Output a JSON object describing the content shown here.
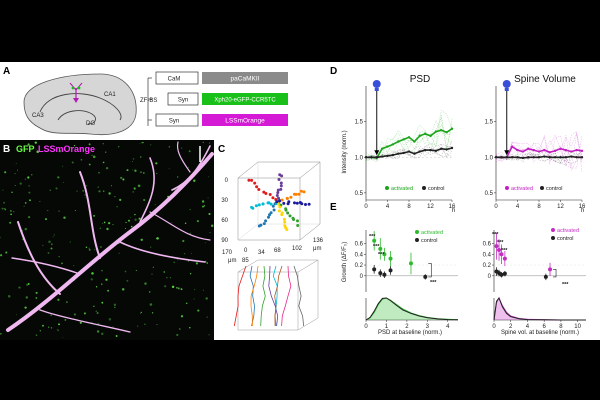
{
  "panels": {
    "A": {
      "label": "A",
      "regions": [
        "CA3",
        "CA1",
        "DG"
      ],
      "constructs": [
        {
          "promoter": "CaM",
          "payload": "paCaMKII",
          "color": "#8a8a8a"
        },
        {
          "promoter": "ZF-BS",
          "promoter2": "Syn",
          "payload": "Xph20-eGFP-CCR5TC",
          "color": "#19c019"
        },
        {
          "promoter": "Syn",
          "payload": "LSSmOrange",
          "color": "#d51ad5"
        }
      ]
    },
    "B": {
      "label": "B",
      "gfp": "GFP",
      "lss": "LSSmOrange",
      "gfp_color": "#66ff44",
      "lss_color": "#ff33ff"
    },
    "C": {
      "label": "C",
      "x_ticks": [
        "0",
        "34",
        "68",
        "102",
        "136"
      ],
      "y_ticks": [
        "0",
        "30",
        "60",
        "90"
      ],
      "z_ticks": [
        "170",
        "85"
      ],
      "unit": "μm"
    },
    "D": {
      "label": "D",
      "psd_title": "PSD",
      "spine_title": "Spine Volume",
      "ylabel": "Intensity (norm.)",
      "legend_activated": "activated",
      "legend_control": "control",
      "x_unit": "h"
    },
    "E": {
      "label": "E",
      "ylabel": "Growth (ΔF/F₀)",
      "left_xlabel": "PSD at baseline (norm.)",
      "right_xlabel": "Spine vol. at baseline (norm.)",
      "legend_activated": "activated",
      "legend_control": "control",
      "sig_stars": [
        "***",
        "***",
        "***",
        "***"
      ],
      "sig_pair": "***"
    }
  },
  "chart_data": [
    {
      "type": "line",
      "title": "PSD",
      "xlabel": "h",
      "ylabel": "Intensity (norm.)",
      "xlim": [
        0,
        16
      ],
      "ylim": [
        0.4,
        2.0
      ],
      "x_ticks": [
        0,
        4,
        8,
        12,
        16
      ],
      "y_ticks": [
        0.5,
        1.0,
        1.5
      ],
      "x": [
        0,
        1,
        2,
        3,
        4,
        5,
        6,
        7,
        8,
        9,
        10,
        11,
        12,
        13,
        14,
        15,
        16
      ],
      "stimulus_time": 2,
      "series": [
        {
          "name": "activated",
          "color": "#1aa51a",
          "values": [
            1.0,
            1.0,
            0.99,
            1.12,
            1.15,
            1.18,
            1.22,
            1.25,
            1.28,
            1.22,
            1.3,
            1.33,
            1.3,
            1.36,
            1.38,
            1.35,
            1.4
          ]
        },
        {
          "name": "control",
          "color": "#222222",
          "values": [
            1.0,
            1.0,
            1.0,
            1.01,
            1.02,
            1.03,
            1.05,
            1.06,
            1.08,
            1.05,
            1.08,
            1.1,
            1.1,
            1.09,
            1.12,
            1.11,
            1.13
          ]
        }
      ]
    },
    {
      "type": "line",
      "title": "Spine Volume",
      "xlabel": "h",
      "ylabel": "",
      "xlim": [
        0,
        16
      ],
      "ylim": [
        0.4,
        2.0
      ],
      "x_ticks": [
        0,
        4,
        8,
        12,
        16
      ],
      "y_ticks": [
        0.5,
        1.0,
        1.5
      ],
      "x": [
        0,
        1,
        2,
        3,
        4,
        5,
        6,
        7,
        8,
        9,
        10,
        11,
        12,
        13,
        14,
        15,
        16
      ],
      "stimulus_time": 2,
      "series": [
        {
          "name": "activated",
          "color": "#c21fc2",
          "values": [
            1.0,
            1.0,
            1.0,
            1.15,
            1.1,
            1.08,
            1.12,
            1.1,
            1.08,
            1.1,
            1.07,
            1.09,
            1.12,
            1.1,
            1.08,
            1.1,
            1.09
          ]
        },
        {
          "name": "control",
          "color": "#222222",
          "values": [
            1.0,
            1.0,
            1.0,
            1.0,
            1.0,
            0.99,
            1.0,
            1.0,
            1.0,
            1.01,
            1.0,
            1.0,
            1.0,
            1.0,
            1.01,
            1.0,
            1.0
          ]
        }
      ]
    },
    {
      "type": "scatter",
      "title": "",
      "xlabel": "PSD at baseline (norm.)",
      "ylabel": "Growth (ΔF/F₀)",
      "xlim": [
        0,
        4.5
      ],
      "ylim": [
        -0.3,
        0.85
      ],
      "x_ticks": [
        0,
        1,
        2,
        3,
        4
      ],
      "y_ticks": [
        0,
        0.2,
        0.4,
        0.6
      ],
      "series": [
        {
          "name": "activated",
          "color": "#2dbb2d",
          "x": [
            0.4,
            0.7,
            0.9,
            1.2,
            2.2
          ],
          "y": [
            0.65,
            0.5,
            0.4,
            0.32,
            0.23
          ],
          "err": [
            0.18,
            0.2,
            0.12,
            0.14,
            0.2
          ]
        },
        {
          "name": "control",
          "color": "#222222",
          "x": [
            0.4,
            0.7,
            0.9,
            1.2,
            2.9
          ],
          "y": [
            0.12,
            0.05,
            0.02,
            0.1,
            -0.02
          ],
          "err": [
            0.08,
            0.07,
            0.06,
            0.08,
            0.05
          ]
        }
      ],
      "distribution": {
        "x": [
          0,
          0.2,
          0.4,
          0.6,
          0.8,
          1.0,
          1.2,
          1.5,
          1.8,
          2.2,
          2.6,
          3.0,
          3.5,
          4.0,
          4.5
        ],
        "activated": [
          0,
          0.1,
          0.35,
          0.7,
          0.95,
          1.0,
          0.9,
          0.7,
          0.5,
          0.32,
          0.2,
          0.12,
          0.06,
          0.03,
          0.01
        ],
        "control": [
          0,
          0.12,
          0.4,
          0.75,
          0.98,
          1.0,
          0.88,
          0.66,
          0.46,
          0.3,
          0.18,
          0.1,
          0.05,
          0.02,
          0.01
        ]
      }
    },
    {
      "type": "scatter",
      "title": "",
      "xlabel": "Spine vol. at baseline (norm.)",
      "ylabel": "",
      "xlim": [
        0,
        11
      ],
      "ylim": [
        -0.3,
        0.85
      ],
      "x_ticks": [
        0,
        2,
        4,
        6,
        8,
        10
      ],
      "y_ticks": [
        0,
        0.2,
        0.4,
        0.6
      ],
      "series": [
        {
          "name": "activated",
          "color": "#c22ec2",
          "x": [
            0.3,
            0.6,
            0.9,
            1.3,
            6.7
          ],
          "y": [
            0.55,
            0.48,
            0.4,
            0.32,
            0.12
          ],
          "err": [
            0.25,
            0.2,
            0.18,
            0.14,
            0.12
          ]
        },
        {
          "name": "control",
          "color": "#222222",
          "x": [
            0.3,
            0.6,
            0.9,
            1.3,
            6.2
          ],
          "y": [
            0.08,
            0.05,
            0.02,
            0.04,
            -0.02
          ],
          "err": [
            0.08,
            0.06,
            0.05,
            0.05,
            0.06
          ]
        }
      ],
      "distribution": {
        "x": [
          0,
          0.3,
          0.6,
          1.0,
          1.5,
          2.0,
          3.0,
          4.0,
          6.0,
          8.0,
          11.0
        ],
        "activated": [
          0,
          0.8,
          1.0,
          0.65,
          0.35,
          0.18,
          0.07,
          0.03,
          0.01,
          0.0,
          0.0
        ],
        "control": [
          0,
          0.85,
          1.0,
          0.6,
          0.3,
          0.15,
          0.06,
          0.02,
          0.01,
          0.0,
          0.0
        ]
      }
    }
  ]
}
